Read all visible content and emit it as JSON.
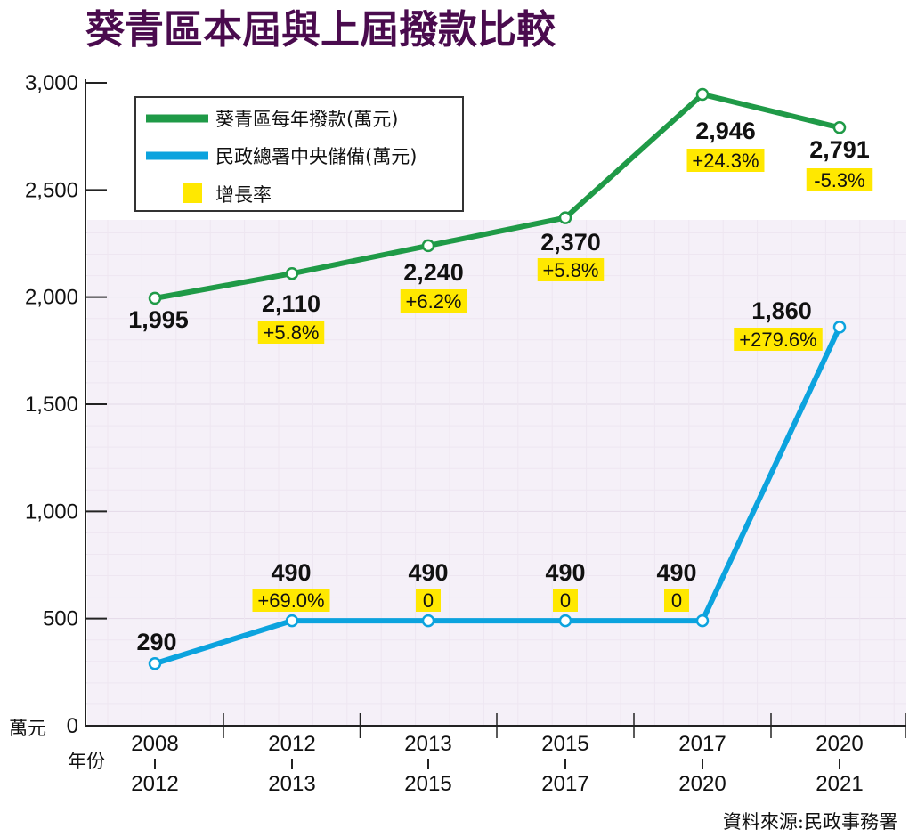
{
  "chart_data": {
    "type": "line",
    "title": "葵青區本屆與上屆撥款比較",
    "y_unit": "萬元",
    "x_unit": "年份",
    "ylim": [
      0,
      3000
    ],
    "yticks": [
      "0",
      "500",
      "1,000",
      "1,500",
      "2,000",
      "2,500",
      "3,000"
    ],
    "ytick_values": [
      0,
      500,
      1000,
      1500,
      2000,
      2500,
      3000
    ],
    "categories": [
      {
        "top": "2008",
        "bottom": "2012"
      },
      {
        "top": "2012",
        "bottom": "2013"
      },
      {
        "top": "2013",
        "bottom": "2015"
      },
      {
        "top": "2015",
        "bottom": "2017"
      },
      {
        "top": "2017",
        "bottom": "2020"
      },
      {
        "top": "2020",
        "bottom": "2021"
      }
    ],
    "series": [
      {
        "name": "葵青區每年撥款(萬元)",
        "color": "#1f9a47",
        "values": [
          1995,
          2110,
          2240,
          2370,
          2946,
          2791
        ],
        "labels": [
          "1,995",
          "2,110",
          "2,240",
          "2,370",
          "2,946",
          "2,791"
        ],
        "growth": [
          "",
          "+5.8%",
          "+6.2%",
          "+5.8%",
          "+24.3%",
          "-5.3%"
        ]
      },
      {
        "name": "民政總署中央儲備(萬元)",
        "color": "#0ca3de",
        "values": [
          290,
          490,
          490,
          490,
          490,
          1860
        ],
        "labels": [
          "290",
          "490",
          "490",
          "490",
          "490",
          "1,860"
        ],
        "growth": [
          "",
          "+69.0%",
          "0",
          "0",
          "0",
          "+279.6%"
        ]
      }
    ],
    "legend": {
      "position": "top-left",
      "items": [
        "葵青區每年撥款(萬元)",
        "民政總署中央儲備(萬元)",
        "增長率"
      ],
      "growth_color": "#ffe800"
    },
    "source": "資料來源:民政事務署"
  }
}
